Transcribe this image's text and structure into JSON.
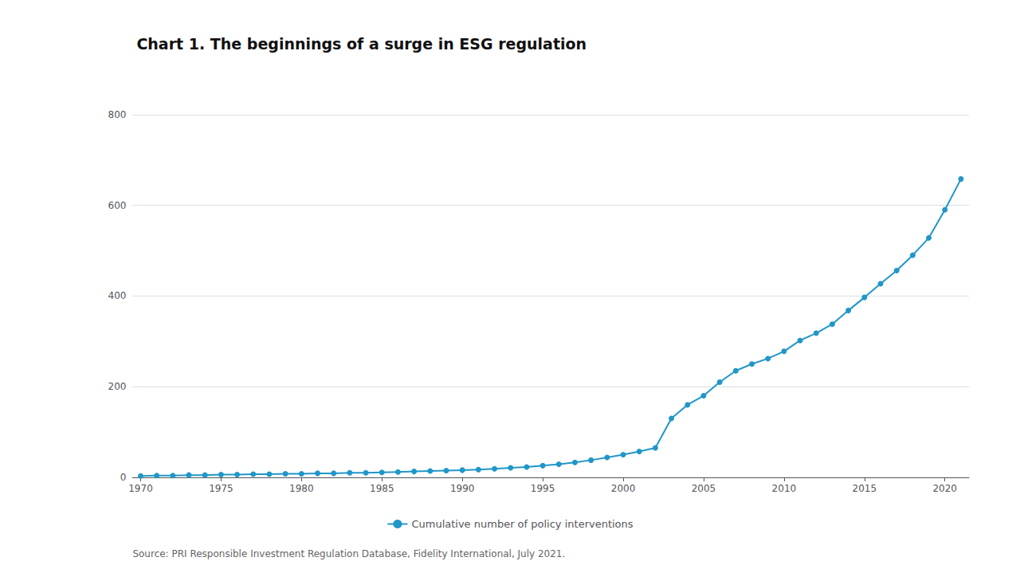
{
  "chart_data": {
    "type": "line",
    "title": "Chart 1. The beginnings of a surge in ESG regulation",
    "annotations": [
      "Source: PRI Responsible Investment Regulation Database, Fidelity International, July 2021."
    ],
    "x": [
      1970,
      1971,
      1972,
      1973,
      1974,
      1975,
      1976,
      1977,
      1978,
      1979,
      1980,
      1981,
      1982,
      1983,
      1984,
      1985,
      1986,
      1987,
      1988,
      1989,
      1990,
      1991,
      1992,
      1993,
      1994,
      1995,
      1996,
      1997,
      1998,
      1999,
      2000,
      2001,
      2002,
      2003,
      2004,
      2005,
      2006,
      2007,
      2008,
      2009,
      2010,
      2011,
      2012,
      2013,
      2014,
      2015,
      2016,
      2017,
      2018,
      2019,
      2020,
      2021
    ],
    "series": [
      {
        "name": "Cumulative number of policy interventions",
        "color": "#2196c8",
        "marker": "circle",
        "values": [
          3,
          4,
          4,
          5,
          5,
          6,
          6,
          7,
          7,
          8,
          8,
          9,
          9,
          10,
          10,
          11,
          12,
          13,
          14,
          15,
          16,
          17,
          19,
          21,
          23,
          26,
          29,
          33,
          38,
          44,
          50,
          57,
          65,
          130,
          160,
          180,
          210,
          235,
          250,
          262,
          278,
          302,
          318,
          338,
          368,
          397,
          427,
          456,
          490,
          528,
          590,
          658
        ]
      }
    ],
    "xlim": [
      1969.5,
      2021.5
    ],
    "xticks": [
      1970,
      1975,
      1980,
      1985,
      1990,
      1995,
      2000,
      2005,
      2010,
      2015,
      2020
    ],
    "ylim": [
      0,
      800
    ],
    "yticks": [
      0,
      200,
      400,
      600,
      800
    ],
    "grid": true,
    "legend": "bottom"
  }
}
